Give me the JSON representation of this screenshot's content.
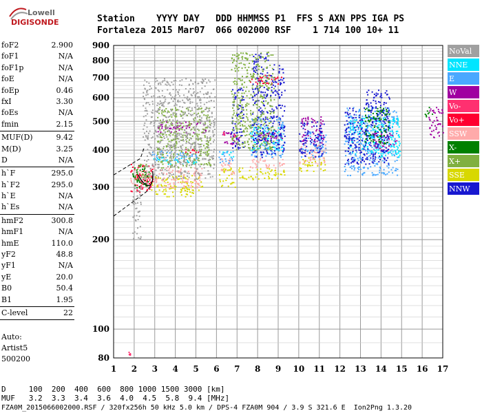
{
  "logo": {
    "line1": "Lowell",
    "line2": "DIGISONDE"
  },
  "header": {
    "line1": "Station    YYYY DAY   DDD HHMMSS P1  FFS S AXN PPS IGA PS",
    "line2": "Fortaleza 2015 Mar07  066 002000 RSF    1 714 100 10+ 11"
  },
  "params": [
    {
      "k": "foF2",
      "v": "2.900"
    },
    {
      "k": "foF1",
      "v": "N/A"
    },
    {
      "k": "foF1p",
      "v": "N/A"
    },
    {
      "k": "foE",
      "v": "N/A"
    },
    {
      "k": "foEp",
      "v": "0.46"
    },
    {
      "k": "fxI",
      "v": "3.30"
    },
    {
      "k": "foEs",
      "v": "N/A"
    },
    {
      "k": "fmin",
      "v": "2.15"
    },
    {
      "sep": true
    },
    {
      "k": "MUF(D)",
      "v": "9.42"
    },
    {
      "k": "M(D)",
      "v": "3.25"
    },
    {
      "k": "D",
      "v": "N/A"
    },
    {
      "sep": true
    },
    {
      "k": "h`F",
      "v": "295.0"
    },
    {
      "k": "h`F2",
      "v": "295.0"
    },
    {
      "k": "h`E",
      "v": "N/A"
    },
    {
      "k": "h`Es",
      "v": "N/A"
    },
    {
      "sep": true
    },
    {
      "k": "hmF2",
      "v": "300.8"
    },
    {
      "k": "hmF1",
      "v": "N/A"
    },
    {
      "k": "hmE",
      "v": "110.0"
    },
    {
      "k": "yF2",
      "v": "48.8"
    },
    {
      "k": "yF1",
      "v": "N/A"
    },
    {
      "k": "yE",
      "v": "20.0"
    },
    {
      "k": "B0",
      "v": "50.4"
    },
    {
      "k": "B1",
      "v": "1.95"
    },
    {
      "sep": true
    },
    {
      "k": "C-level",
      "v": "22"
    },
    {
      "sep": true
    }
  ],
  "auto": {
    "line1": "Auto:",
    "line2": "Artist5",
    "line3": "500200"
  },
  "footer": {
    "d_row": "D     100  200  400  600  800 1000 1500 3000 [km]",
    "muf_row": "MUF   3.2  3.3  3.4  3.6  4.0  4.5  5.8  9.4 [MHz]",
    "file_row": "FZA0M_2015066002000.RSF / 320fx256h 50 kHz 5.0 km / DPS-4 FZA0M 904 / 3.9 S 321.6 E  Ion2Png 1.3.20"
  },
  "legend": [
    {
      "label": "NoVal",
      "color": "#a0a0a0"
    },
    {
      "label": "NNE",
      "color": "#00e5ff"
    },
    {
      "label": "E",
      "color": "#4aa8ff"
    },
    {
      "label": "W",
      "color": "#a000a0"
    },
    {
      "label": "Vo-",
      "color": "#ff3070"
    },
    {
      "label": "Vo+",
      "color": "#ff0030"
    },
    {
      "label": "SSW",
      "color": "#ffaaaa"
    },
    {
      "label": "X-",
      "color": "#008000"
    },
    {
      "label": "X+",
      "color": "#80b040"
    },
    {
      "label": "SSE",
      "color": "#d8d800"
    },
    {
      "label": "NNW",
      "color": "#1818d0"
    }
  ],
  "chart_data": {
    "type": "scatter",
    "xlabel": "",
    "ylabel": "",
    "xlim": [
      1,
      17
    ],
    "ylim": [
      80,
      900
    ],
    "y_scale": "log",
    "xticks": [
      1,
      2,
      3,
      4,
      5,
      6,
      7,
      8,
      9,
      10,
      11,
      12,
      13,
      14,
      15,
      16,
      17
    ],
    "yticks": [
      80,
      100,
      200,
      300,
      400,
      500,
      600,
      700,
      800,
      900
    ],
    "grid": true,
    "series": [
      {
        "name": "SSE",
        "color": "#d8d800",
        "clusters": [
          [
            2.8,
            5.3,
            280,
            330
          ],
          [
            6.1,
            6.9,
            300,
            350
          ],
          [
            7,
            9.3,
            320,
            350
          ],
          [
            10,
            11.3,
            340,
            380
          ]
        ]
      },
      {
        "name": "SSW",
        "color": "#ffaaaa",
        "clusters": [
          [
            1.8,
            5.3,
            300,
            350
          ],
          [
            6.2,
            6.9,
            330,
            380
          ],
          [
            7.6,
            9.3,
            350,
            380
          ],
          [
            10,
            11.3,
            360,
            420
          ]
        ]
      },
      {
        "name": "E",
        "color": "#4aa8ff",
        "clusters": [
          [
            2.8,
            5.2,
            370,
            400
          ],
          [
            6.1,
            6.8,
            360,
            400
          ],
          [
            7.6,
            9.3,
            380,
            520
          ],
          [
            10.1,
            11.3,
            380,
            470
          ],
          [
            12.2,
            14.8,
            330,
            560
          ]
        ]
      },
      {
        "name": "NNE",
        "color": "#00e5ff",
        "clusters": [
          [
            2.9,
            5.1,
            360,
            380
          ],
          [
            6.2,
            6.8,
            380,
            400
          ],
          [
            7.6,
            9.2,
            400,
            480
          ],
          [
            12.4,
            14.9,
            380,
            520
          ]
        ]
      },
      {
        "name": "W",
        "color": "#a000a0",
        "clusters": [
          [
            3.1,
            5.5,
            460,
            500
          ],
          [
            6.2,
            7.1,
            420,
            470
          ],
          [
            7.6,
            9.2,
            430,
            460
          ],
          [
            10.1,
            11.2,
            420,
            520
          ],
          [
            13.5,
            14.8,
            400,
            460
          ],
          [
            16.3,
            17,
            440,
            560
          ]
        ]
      },
      {
        "name": "NNW",
        "color": "#1818d0",
        "clusters": [
          [
            6.7,
            7.3,
            400,
            650
          ],
          [
            7.7,
            8.5,
            380,
            850
          ],
          [
            8.6,
            9.3,
            390,
            780
          ],
          [
            10,
            11.2,
            380,
            500
          ],
          [
            12.2,
            13.2,
            360,
            560
          ],
          [
            13.2,
            14.4,
            360,
            640
          ]
        ]
      },
      {
        "name": "Vo+",
        "color": "#ff0030",
        "clusters": [
          [
            1.8,
            2.9,
            290,
            360
          ],
          [
            7.6,
            9.2,
            670,
            720
          ],
          [
            4.4,
            5.1,
            390,
            410
          ]
        ]
      },
      {
        "name": "Vo-",
        "color": "#ff3070",
        "clusters": [
          [
            1.6,
            1.9,
            82,
            84
          ],
          [
            2.2,
            2.8,
            300,
            340
          ],
          [
            6.3,
            6.9,
            440,
            460
          ]
        ]
      },
      {
        "name": "X-",
        "color": "#008000",
        "clusters": [
          [
            1.9,
            2.7,
            300,
            360
          ],
          [
            13.2,
            14.4,
            420,
            560
          ],
          [
            16.1,
            16.5,
            520,
            560
          ]
        ]
      },
      {
        "name": "X+",
        "color": "#80b040",
        "clusters": [
          [
            2,
            2.8,
            320,
            360
          ],
          [
            3.1,
            5.7,
            350,
            560
          ],
          [
            6.7,
            8.8,
            400,
            860
          ]
        ]
      },
      {
        "name": "NoVal",
        "color": "#a0a0a0",
        "clusters": [
          [
            2.4,
            5.9,
            320,
            700
          ],
          [
            1.9,
            2.3,
            200,
            300
          ]
        ]
      }
    ]
  }
}
